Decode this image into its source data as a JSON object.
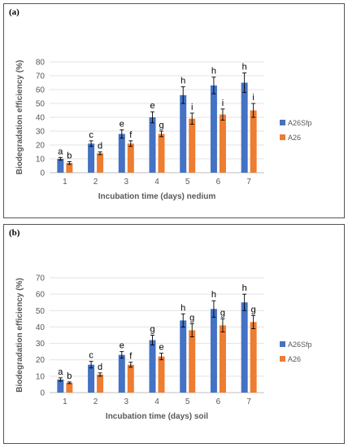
{
  "chart_data": [
    {
      "type": "bar",
      "panel_label": "(a)",
      "xlabel": "Incubation time (days) nedium",
      "ylabel": "Biodegradation efficiency (%)",
      "ylim": [
        0,
        80
      ],
      "yticks": [
        0,
        10,
        20,
        30,
        40,
        50,
        60,
        70,
        80
      ],
      "categories": [
        "1",
        "2",
        "3",
        "4",
        "5",
        "6",
        "7"
      ],
      "grid": true,
      "legend_position": "right",
      "series": [
        {
          "name": "A26Sfp",
          "color": "#4472c4",
          "values": [
            10,
            21,
            28,
            40,
            56,
            63,
            65
          ],
          "errors": [
            1,
            2,
            3,
            4,
            6,
            6,
            7
          ],
          "letters": [
            "a",
            "c",
            "e",
            "e",
            "h",
            "h",
            "h"
          ]
        },
        {
          "name": "A26",
          "color": "#ed7d31",
          "values": [
            7,
            14,
            21,
            28,
            39,
            42,
            45
          ],
          "errors": [
            1,
            1,
            2,
            2,
            4,
            4,
            5
          ],
          "letters": [
            "b",
            "d",
            "f",
            "g",
            "i",
            "i",
            "i"
          ]
        }
      ]
    },
    {
      "type": "bar",
      "panel_label": "(b)",
      "xlabel": "Incubation time (days) soil",
      "ylabel": "Biodegradation efficiency (%)",
      "ylim": [
        0,
        70
      ],
      "yticks": [
        0,
        10,
        20,
        30,
        40,
        50,
        60,
        70
      ],
      "categories": [
        "1",
        "2",
        "3",
        "4",
        "5",
        "6",
        "7"
      ],
      "grid": true,
      "legend_position": "right",
      "series": [
        {
          "name": "A26Sfp",
          "color": "#4472c4",
          "values": [
            8,
            17,
            23,
            32,
            44,
            51,
            55
          ],
          "errors": [
            1,
            2,
            2,
            3,
            4,
            5,
            5
          ],
          "letters": [
            "a",
            "c",
            "e",
            "g",
            "h",
            "h",
            "h"
          ]
        },
        {
          "name": "A26",
          "color": "#ed7d31",
          "values": [
            6,
            11,
            17,
            22,
            38,
            41,
            43
          ],
          "errors": [
            0.5,
            1,
            1.5,
            2,
            4,
            4,
            4
          ],
          "letters": [
            "b",
            "d",
            "f",
            "e",
            "g",
            "g",
            "g"
          ]
        }
      ]
    }
  ]
}
